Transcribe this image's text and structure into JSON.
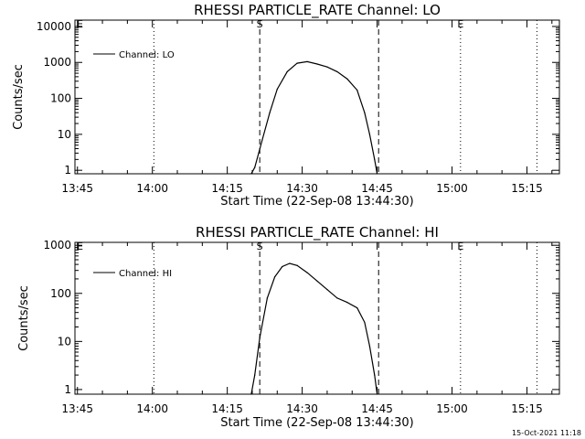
{
  "footer_timestamp": "15-Oct-2021 11:18",
  "chart_data": [
    {
      "type": "line",
      "title": "RHESSI PARTICLE_RATE Channel: LO",
      "xlabel": "Start Time (22-Sep-08 13:44:30)",
      "ylabel": "Counts/sec",
      "x_unit": "minutes after 13:44:30",
      "x_ticks": [
        "13:45",
        "14:00",
        "14:15",
        "14:30",
        "14:45",
        "15:00",
        "15:15"
      ],
      "x_tick_values": [
        0.5,
        15.5,
        30.5,
        45.5,
        60.5,
        75.5,
        90.5
      ],
      "xlim": [
        0,
        97
      ],
      "y_ticks": [
        "1",
        "10",
        "100",
        "1000",
        "10000"
      ],
      "y_tick_values": [
        1,
        10,
        100,
        1000,
        10000
      ],
      "ylim": [
        0.8,
        15000
      ],
      "yscale": "log",
      "grid": false,
      "legend_position": "top-left",
      "series": [
        {
          "name": "Channel: LO",
          "x": [
            35.3,
            36.0,
            37.5,
            39.0,
            40.5,
            42.5,
            44.5,
            46.5,
            48.5,
            50.5,
            52.5,
            54.5,
            56.5,
            58.0,
            59.0,
            60.0,
            60.5
          ],
          "y": [
            0.8,
            1.2,
            7,
            40,
            180,
            550,
            950,
            1050,
            900,
            750,
            550,
            350,
            170,
            40,
            10,
            2,
            0.8
          ]
        }
      ],
      "vertical_markers": [
        {
          "label": "S",
          "style": "dashed",
          "x": 37.0
        },
        {
          "label": "",
          "style": "dashed",
          "x": 60.8
        },
        {
          "label": "E",
          "style": "dotted",
          "x": 77.2
        },
        {
          "label": "",
          "style": "dotted",
          "x": 15.8
        },
        {
          "label": "",
          "style": "dotted",
          "x": 92.5
        }
      ],
      "corner_mark": "E"
    },
    {
      "type": "line",
      "title": "RHESSI PARTICLE_RATE Channel: HI",
      "xlabel": "Start Time (22-Sep-08 13:44:30)",
      "ylabel": "Counts/sec",
      "x_unit": "minutes after 13:44:30",
      "x_ticks": [
        "13:45",
        "14:00",
        "14:15",
        "14:30",
        "14:45",
        "15:00",
        "15:15"
      ],
      "x_tick_values": [
        0.5,
        15.5,
        30.5,
        45.5,
        60.5,
        75.5,
        90.5
      ],
      "xlim": [
        0,
        97
      ],
      "y_ticks": [
        "1",
        "10",
        "100",
        "1000"
      ],
      "y_tick_values": [
        1,
        10,
        100,
        1000
      ],
      "ylim": [
        0.8,
        1150
      ],
      "yscale": "log",
      "grid": false,
      "legend_position": "top-left",
      "series": [
        {
          "name": "Channel: HI",
          "x": [
            35.3,
            36.0,
            37.0,
            38.5,
            40.0,
            41.5,
            43.0,
            44.5,
            46.5,
            48.5,
            50.5,
            52.5,
            54.5,
            56.5,
            58.0,
            59.0,
            60.0,
            60.5
          ],
          "y": [
            0.8,
            2,
            12,
            80,
            220,
            360,
            420,
            380,
            270,
            180,
            120,
            80,
            65,
            50,
            25,
            8,
            2,
            0.8
          ]
        }
      ],
      "vertical_markers": [
        {
          "label": "S",
          "style": "dashed",
          "x": 37.0
        },
        {
          "label": "",
          "style": "dashed",
          "x": 60.8
        },
        {
          "label": "E",
          "style": "dotted",
          "x": 77.2
        },
        {
          "label": "",
          "style": "dotted",
          "x": 15.8
        },
        {
          "label": "",
          "style": "dotted",
          "x": 92.5
        }
      ],
      "corner_mark": "E"
    }
  ]
}
